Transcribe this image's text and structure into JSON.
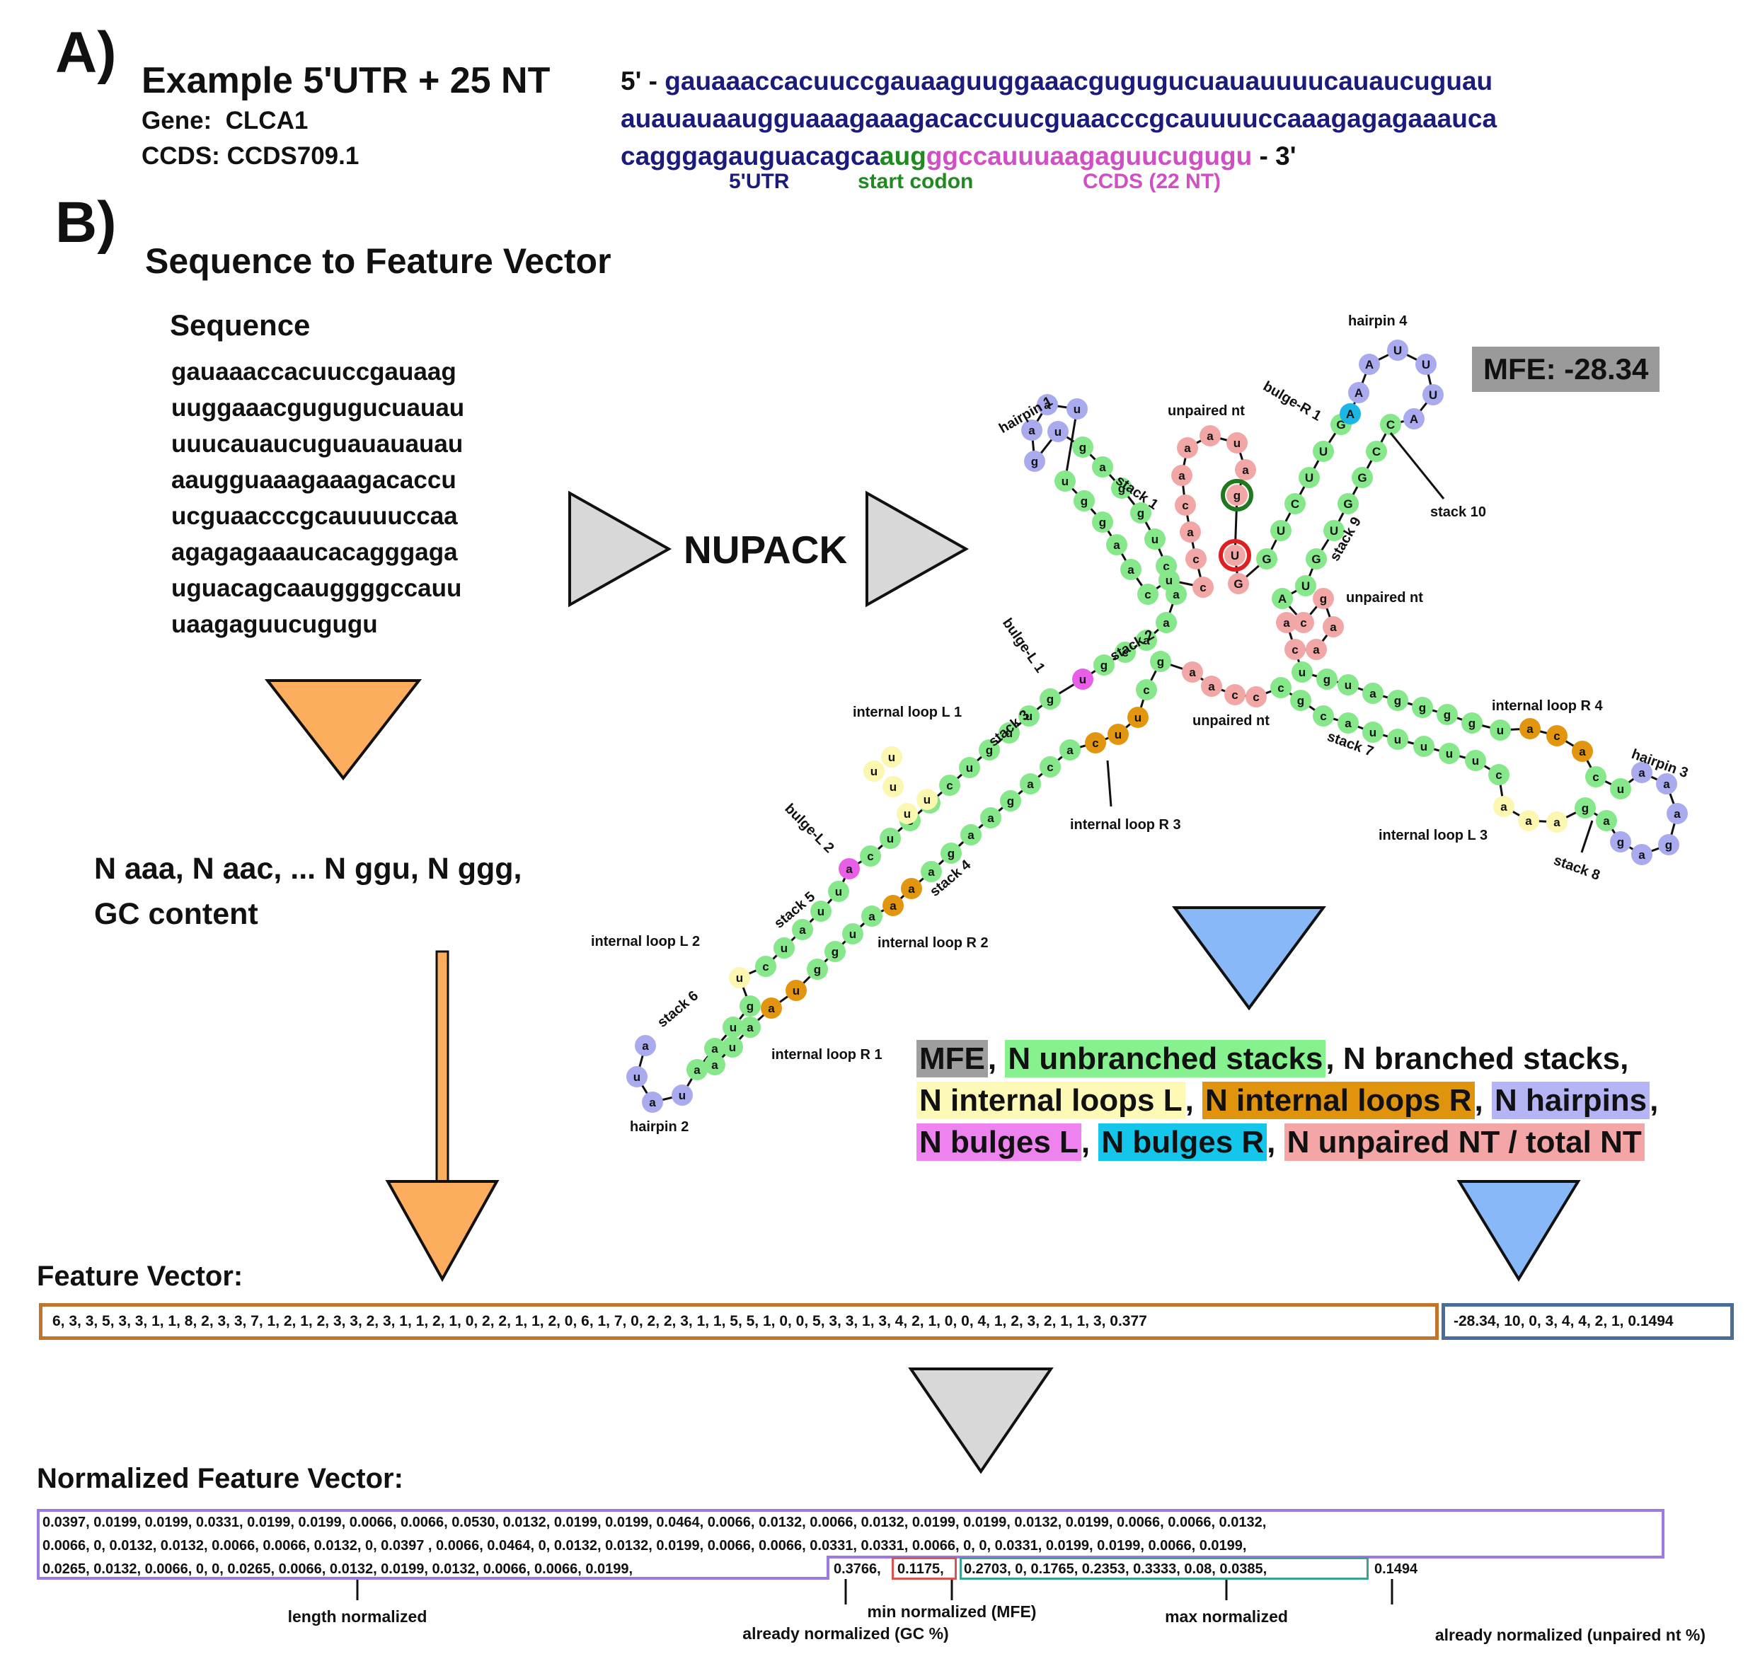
{
  "panel_a": {
    "label": "A)",
    "title": "Example 5'UTR + 25 NT",
    "gene_label": "Gene:",
    "gene": "CLCA1",
    "ccds_label": "CCDS:",
    "ccds": "CCDS709.1",
    "five_prime": "5' -",
    "three_prime": "- 3'",
    "seq_line1": "gauaaaccacuuccgauaaguuggaaacgugugucuauauuuucauaucuguau",
    "seq_line2": "auauauaaugguaaagaaagacaccuucguaacccgcauuuuccaaagagagaaauca",
    "seq_line3_utr": "cagggagauguacagca",
    "seq_line3_start": "aug",
    "seq_line3_ccds": "ggccauuuaagaguucugugu",
    "legend_utr": "5'UTR",
    "legend_start": "start codon",
    "legend_ccds": "CCDS (22 NT)",
    "colors": {
      "utr": "#1b1b7e",
      "start": "#1f8a1f",
      "ccds": "#d04fc4"
    }
  },
  "panel_b": {
    "label": "B)",
    "title": "Sequence to Feature Vector",
    "sequence_heading": "Sequence",
    "sequence_lines": [
      "gauaaaccacuuccgauaag",
      "uuggaaacgugugucuauau",
      "uuucauaucuguauauauau",
      "aaugguaaagaaagacaccu",
      "ucguaacccgcauuuuccaa",
      "agagagaaaucacagggaga",
      "uguacagcaauggggccauu",
      "uaagaguucugugu"
    ],
    "nupack_label": "NUPACK",
    "kmer_line1": "N aaa, N aac, ...  N ggu, N ggg,",
    "kmer_line2": "GC content",
    "mfe_badge": "MFE: -28.34",
    "feature_names": {
      "mfe": "MFE",
      "unbranched": "N unbranched stacks",
      "branched": "N branched stacks,",
      "int_l": "N internal loops L",
      "int_r": "N internal loops R",
      "hairpins": "N hairpins",
      "bulges_l": "N bulges L",
      "bulges_r": "N bulges R",
      "unpaired": "N unpaired NT / total NT",
      "sep": ","
    },
    "structure_labels": {
      "hairpin1": "hairpin 1",
      "hairpin2": "hairpin 2",
      "hairpin3": "hairpin 3",
      "hairpin4": "hairpin 4",
      "stack1": "stack 1",
      "stack2": "stack 2",
      "stack3": "stack 3",
      "stack4": "stack 4",
      "stack5": "stack 5",
      "stack6": "stack 6",
      "stack7": "stack 7",
      "stack8": "stack 8",
      "stack9": "stack 9",
      "stack10": "stack 10",
      "bulgeL1": "bulge-L 1",
      "bulgeL2": "bulge-L 2",
      "bulgeR1": "bulge-R 1",
      "unpaired_top": "unpaired nt",
      "unpaired_right": "unpaired nt",
      "unpaired_mid": "unpaired nt",
      "ilL1": "internal loop L 1",
      "ilL2": "internal loop L 2",
      "ilL3": "internal loop L 3",
      "ilR1": "internal loop R 1",
      "ilR2": "internal loop R 2",
      "ilR3": "internal loop R 3",
      "ilR4": "internal loop R 4"
    },
    "nt_colors": {
      "stack": "#86e88a",
      "hairpin": "#aaaaee",
      "unpaired": "#f2a7a7",
      "bulge_l": "#e75fe7",
      "bulge_r": "#1bb6e6",
      "int_l": "#fbf6b0",
      "int_r": "#e2960f"
    }
  },
  "feature_vector": {
    "title": "Feature Vector:",
    "left": "6, 3, 3, 5, 3, 3, 1, 1, 8, 2, 3, 3, 7, 1, 2, 1, 2, 3, 3, 2, 3, 1, 1, 2, 1, 0, 2, 2, 1, 1, 2, 0, 6, 1, 7, 0, 2, 2, 3, 1, 1, 5, 5, 1, 0, 0, 5, 3, 3, 1, 3, 4, 2, 1, 0, 0, 4, 1, 2, 3, 2, 1, 1, 3, 0.377",
    "right": "-28.34, 10, 0, 3, 4, 4, 2, 1, 0.1494",
    "left_border": "#c0742c",
    "right_border": "#4a6e99"
  },
  "normalized_vector": {
    "title": "Normalized Feature Vector:",
    "line1": "0.0397, 0.0199, 0.0199, 0.0331, 0.0199, 0.0199, 0.0066, 0.0066, 0.0530, 0.0132, 0.0199, 0.0199, 0.0464, 0.0066, 0.0132, 0.0066, 0.0132, 0.0199, 0.0199, 0.0132, 0.0199, 0.0066, 0.0066, 0.0132,",
    "line2": "0.0066,  0, 0.0132, 0.0132, 0.0066, 0.0066, 0.0132, 0, 0.0397 , 0.0066, 0.0464, 0, 0.0132, 0.0132, 0.0199, 0.0066, 0.0066, 0.0331, 0.0331, 0.0066, 0, 0, 0.0331, 0.0199, 0.0199, 0.0066, 0.0199,",
    "line3a": "0.0265, 0.0132, 0.0066, 0, 0, 0.0265, 0.0066, 0.0132, 0.0199, 0.0132, 0.0066, 0.0066, 0.0199,",
    "gc": "0.3766,",
    "mfe": "0.1175,",
    "max": "0.2703, 0, 0.1765, 0.2353,  0.3333, 0.08, 0.0385,",
    "unpaired": "0.1494",
    "ann_length": "length normalized",
    "ann_gc": "already normalized (GC %)",
    "ann_mfe": "min normalized (MFE)",
    "ann_max": "max normalized",
    "ann_unpaired": "already normalized (unpaired nt %)",
    "colors": {
      "length": "#9a7be6",
      "mfe": "#d9534f",
      "max": "#3aa38f"
    }
  },
  "arrow_colors": {
    "grey": "#d8d8d8",
    "orange": "#fcad5e",
    "blue": "#88b8f8"
  }
}
